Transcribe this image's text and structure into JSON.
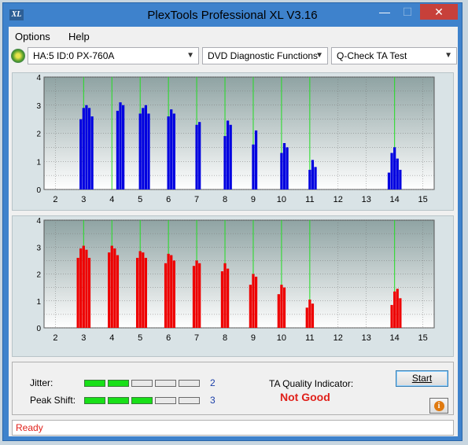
{
  "window": {
    "icon_text": "XL",
    "title": "PlexTools Professional XL V3.16",
    "min_glyph": "—",
    "max_glyph": "☐",
    "close_glyph": "✕"
  },
  "menu": {
    "options": "Options",
    "help": "Help"
  },
  "toolbar": {
    "drive": "HA:5 ID:0  PX-760A",
    "function": "DVD Diagnostic Functions",
    "test": "Q-Check TA Test",
    "arrow": "▼"
  },
  "colors": {
    "top_series": "#0000e0",
    "bottom_series": "#ee0000",
    "marker": "#22dd22",
    "good": "#18e018",
    "bad_text": "#e0201a"
  },
  "chart_data": [
    {
      "type": "bar",
      "x": [
        2.9,
        3.0,
        3.1,
        3.2,
        3.3,
        4.2,
        4.3,
        4.4,
        5.0,
        5.1,
        5.2,
        5.3,
        6.0,
        6.1,
        6.2,
        7.0,
        7.1,
        8.0,
        8.1,
        8.2,
        9.0,
        9.1,
        10.0,
        10.1,
        10.2,
        11.0,
        11.1,
        11.2,
        13.8,
        13.9,
        14.0,
        14.1,
        14.2
      ],
      "y": [
        2.5,
        2.9,
        3.0,
        2.9,
        2.6,
        2.8,
        3.1,
        3.0,
        2.7,
        2.9,
        3.0,
        2.7,
        2.6,
        2.85,
        2.7,
        2.3,
        2.4,
        1.9,
        2.45,
        2.3,
        1.6,
        2.1,
        1.3,
        1.65,
        1.5,
        0.7,
        1.05,
        0.8,
        0.6,
        1.3,
        1.5,
        1.1,
        0.7
      ],
      "xlim": [
        1.6,
        15.4
      ],
      "ylim": [
        0,
        4
      ],
      "x_ticks": [
        2,
        3,
        4,
        5,
        6,
        7,
        8,
        9,
        10,
        11,
        12,
        13,
        14,
        15
      ],
      "y_ticks": [
        "0",
        "0.5",
        "1",
        "1.5",
        "2",
        "2.5",
        "3",
        "3.5",
        "4"
      ],
      "markers": [
        3,
        4,
        5,
        6,
        7,
        8,
        9,
        10,
        11,
        14
      ]
    },
    {
      "type": "bar",
      "x": [
        2.8,
        2.9,
        3.0,
        3.1,
        3.2,
        3.9,
        4.0,
        4.1,
        4.2,
        4.9,
        5.0,
        5.1,
        5.2,
        5.9,
        6.0,
        6.1,
        6.2,
        6.9,
        7.0,
        7.1,
        7.9,
        8.0,
        8.1,
        8.9,
        9.0,
        9.1,
        9.9,
        10.0,
        10.1,
        10.9,
        11.0,
        11.1,
        13.9,
        14.0,
        14.1,
        14.2
      ],
      "y": [
        2.6,
        2.95,
        3.05,
        2.9,
        2.6,
        2.8,
        3.05,
        2.95,
        2.7,
        2.6,
        2.85,
        2.8,
        2.6,
        2.4,
        2.75,
        2.7,
        2.5,
        2.3,
        2.5,
        2.4,
        2.1,
        2.4,
        2.2,
        1.6,
        2.0,
        1.9,
        1.25,
        1.6,
        1.5,
        0.75,
        1.05,
        0.9,
        0.85,
        1.35,
        1.45,
        1.1
      ],
      "xlim": [
        1.6,
        15.4
      ],
      "ylim": [
        0,
        4
      ],
      "x_ticks": [
        2,
        3,
        4,
        5,
        6,
        7,
        8,
        9,
        10,
        11,
        12,
        13,
        14,
        15
      ],
      "y_ticks": [
        "0",
        "0.5",
        "1",
        "1.5",
        "2",
        "2.5",
        "3",
        "3.5",
        "4"
      ],
      "markers": [
        3,
        4,
        5,
        6,
        7,
        8,
        9,
        10,
        11,
        14
      ]
    }
  ],
  "metrics": {
    "jitter": {
      "label": "Jitter:",
      "value": "2",
      "level": 2,
      "max": 5
    },
    "peak_shift": {
      "label": "Peak Shift:",
      "value": "3",
      "level": 3,
      "max": 5
    }
  },
  "ta": {
    "label": "TA Quality Indicator:",
    "result": "Not Good"
  },
  "buttons": {
    "start": "Start",
    "info": "i"
  },
  "status": {
    "text": "Ready"
  }
}
